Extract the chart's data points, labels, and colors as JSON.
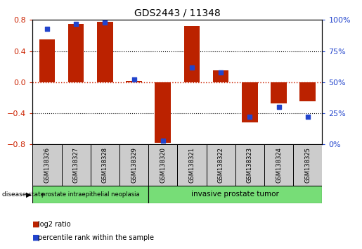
{
  "title": "GDS2443 / 11348",
  "samples": [
    "GSM138326",
    "GSM138327",
    "GSM138328",
    "GSM138329",
    "GSM138320",
    "GSM138321",
    "GSM138322",
    "GSM138323",
    "GSM138324",
    "GSM138325"
  ],
  "log2_ratio": [
    0.55,
    0.75,
    0.78,
    0.02,
    -0.78,
    0.72,
    0.15,
    -0.52,
    -0.27,
    -0.25
  ],
  "percentile_rank": [
    93,
    97,
    98,
    52,
    3,
    62,
    58,
    22,
    30,
    22
  ],
  "ylim": [
    -0.8,
    0.8
  ],
  "yticks_left": [
    -0.8,
    -0.4,
    0.0,
    0.4,
    0.8
  ],
  "yticks_right": [
    0,
    25,
    50,
    75,
    100
  ],
  "bar_color": "#BB2200",
  "dot_color": "#2244CC",
  "hline_color": "#CC2200",
  "grid_color": "#000000",
  "title_color": "#000000",
  "left_yaxis_color": "#CC2200",
  "right_yaxis_color": "#2244CC",
  "group1_label": "prostate intraepithelial neoplasia",
  "group2_label": "invasive prostate tumor",
  "group1_indices": [
    0,
    1,
    2,
    3
  ],
  "group2_indices": [
    4,
    5,
    6,
    7,
    8,
    9
  ],
  "disease_state_label": "disease state",
  "legend_red": "log2 ratio",
  "legend_blue": "percentile rank within the sample",
  "bar_width": 0.55,
  "dot_size": 22,
  "table_bg": "#CCCCCC",
  "group_bg": "#77DD77"
}
